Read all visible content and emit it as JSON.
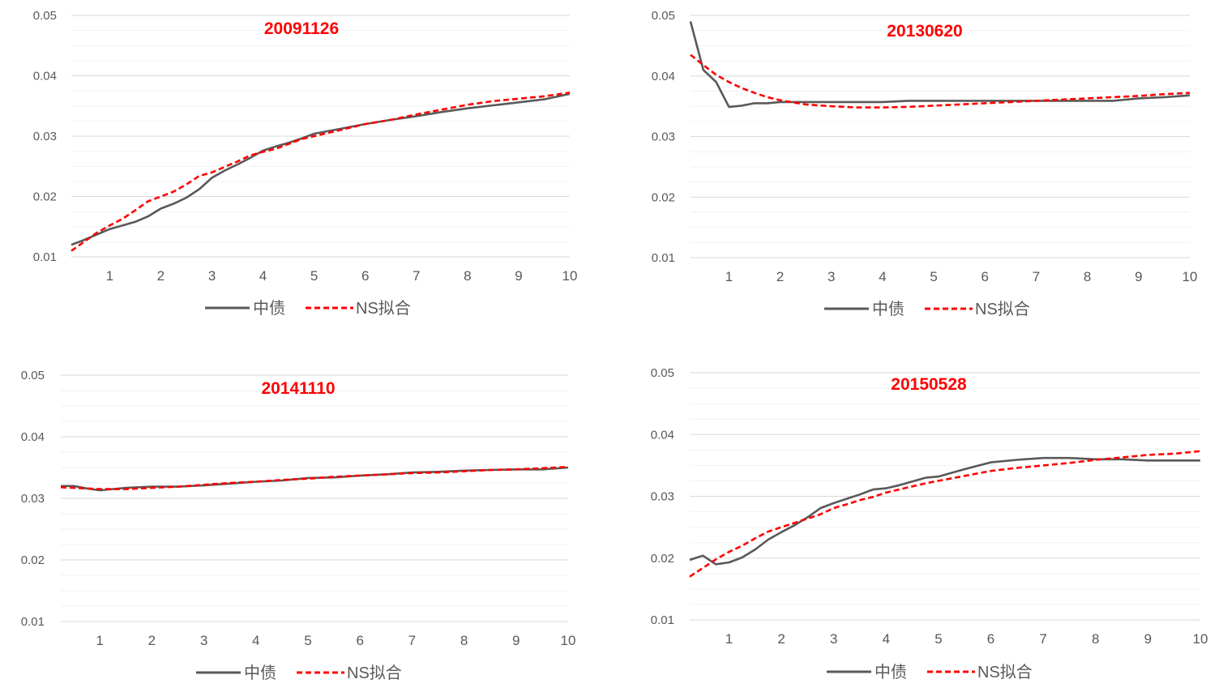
{
  "legend": {
    "series_names": [
      "中债",
      "NS拟合"
    ]
  },
  "colors": {
    "actual": "#595959",
    "fit": "#ff0000",
    "gridline": "#d9d9d9",
    "minor_gridline": "#f2f2f2"
  },
  "chart_data": [
    {
      "type": "line",
      "title": "20091126",
      "x_ticks": [
        1,
        2,
        3,
        4,
        5,
        6,
        7,
        8,
        9,
        10
      ],
      "y_ticks": [
        "0.01",
        "0.02",
        "0.03",
        "0.04",
        "0.05"
      ],
      "xlim": [
        0.25,
        10
      ],
      "ylim": [
        0.01,
        0.05
      ],
      "legend_position": "bottom",
      "series": [
        {
          "name": "中债",
          "style": "solid",
          "x": [
            0.25,
            0.5,
            0.75,
            1,
            1.25,
            1.5,
            1.75,
            2,
            2.25,
            2.5,
            2.75,
            3,
            3.25,
            3.5,
            3.75,
            4,
            4.25,
            4.5,
            4.75,
            5,
            5.5,
            6,
            6.5,
            7,
            7.5,
            8,
            8.5,
            9,
            9.5,
            10
          ],
          "y": [
            0.012,
            0.0128,
            0.0137,
            0.0146,
            0.0152,
            0.0158,
            0.0167,
            0.018,
            0.0188,
            0.0198,
            0.0212,
            0.0231,
            0.0243,
            0.0253,
            0.0264,
            0.0276,
            0.0283,
            0.0289,
            0.0296,
            0.0304,
            0.0312,
            0.032,
            0.0327,
            0.0333,
            0.034,
            0.0346,
            0.0351,
            0.0356,
            0.0361,
            0.037
          ]
        },
        {
          "name": "NS拟合",
          "style": "dashed",
          "x": [
            0.25,
            0.5,
            0.75,
            1,
            1.25,
            1.5,
            1.75,
            2,
            2.25,
            2.5,
            2.75,
            3,
            3.25,
            3.5,
            3.75,
            4,
            4.25,
            4.5,
            4.75,
            5,
            5.5,
            6,
            6.5,
            7,
            7.5,
            8,
            8.5,
            9,
            9.5,
            10
          ],
          "y": [
            0.011,
            0.0125,
            0.014,
            0.0152,
            0.0163,
            0.0177,
            0.0192,
            0.02,
            0.0208,
            0.022,
            0.0234,
            0.024,
            0.0249,
            0.0258,
            0.0268,
            0.0274,
            0.0279,
            0.0287,
            0.0295,
            0.03,
            0.031,
            0.032,
            0.0327,
            0.0336,
            0.0344,
            0.0352,
            0.0358,
            0.0362,
            0.0366,
            0.0372
          ]
        }
      ]
    },
    {
      "type": "line",
      "title": "20130620",
      "x_ticks": [
        1,
        2,
        3,
        4,
        5,
        6,
        7,
        8,
        9,
        10
      ],
      "y_ticks": [
        "0.01",
        "0.02",
        "0.03",
        "0.04",
        "0.05"
      ],
      "xlim": [
        0.25,
        10
      ],
      "ylim": [
        0.01,
        0.05
      ],
      "legend_position": "bottom",
      "series": [
        {
          "name": "中债",
          "style": "solid",
          "x": [
            0.25,
            0.5,
            0.75,
            1,
            1.25,
            1.5,
            1.75,
            2,
            2.5,
            3,
            3.5,
            4,
            4.5,
            5,
            5.5,
            6,
            6.5,
            7,
            7.5,
            8,
            8.5,
            9,
            9.5,
            10
          ],
          "y": [
            0.049,
            0.041,
            0.039,
            0.0349,
            0.0351,
            0.0355,
            0.0355,
            0.0357,
            0.0357,
            0.0357,
            0.0357,
            0.0357,
            0.0359,
            0.0359,
            0.0359,
            0.0359,
            0.0359,
            0.0359,
            0.0359,
            0.0359,
            0.0359,
            0.0363,
            0.0365,
            0.0368
          ]
        },
        {
          "name": "NS拟合",
          "style": "dashed",
          "x": [
            0.25,
            0.5,
            0.75,
            1,
            1.25,
            1.5,
            1.75,
            2,
            2.5,
            3,
            3.5,
            4,
            4.5,
            5,
            5.5,
            6,
            6.5,
            7,
            7.5,
            8,
            8.5,
            9,
            9.5,
            10
          ],
          "y": [
            0.0435,
            0.0418,
            0.0402,
            0.039,
            0.038,
            0.0372,
            0.0365,
            0.036,
            0.0353,
            0.035,
            0.0348,
            0.0348,
            0.0349,
            0.0351,
            0.0353,
            0.0355,
            0.0357,
            0.0359,
            0.0361,
            0.0363,
            0.0365,
            0.0367,
            0.037,
            0.0372
          ]
        }
      ]
    },
    {
      "type": "line",
      "title": "20141110",
      "x_ticks": [
        1,
        2,
        3,
        4,
        5,
        6,
        7,
        8,
        9,
        10
      ],
      "y_ticks": [
        "0.01",
        "0.02",
        "0.03",
        "0.04",
        "0.05"
      ],
      "xlim": [
        0.25,
        10
      ],
      "ylim": [
        0.01,
        0.05
      ],
      "legend_position": "bottom",
      "series": [
        {
          "name": "中债",
          "style": "solid",
          "x": [
            0.25,
            0.5,
            0.75,
            1,
            1.5,
            2,
            2.5,
            3,
            3.5,
            4,
            4.5,
            5,
            5.5,
            6,
            6.5,
            7,
            7.5,
            8,
            8.5,
            9,
            9.5,
            10
          ],
          "y": [
            0.032,
            0.032,
            0.0316,
            0.0313,
            0.0317,
            0.0319,
            0.0319,
            0.0321,
            0.0324,
            0.0327,
            0.0329,
            0.0333,
            0.0334,
            0.0337,
            0.0339,
            0.0342,
            0.0343,
            0.0345,
            0.0346,
            0.0347,
            0.0347,
            0.035
          ]
        },
        {
          "name": "NS拟合",
          "style": "dashed",
          "x": [
            0.25,
            0.5,
            0.75,
            1,
            1.5,
            2,
            2.5,
            3,
            3.5,
            4,
            4.5,
            5,
            5.5,
            6,
            6.5,
            7,
            7.5,
            8,
            8.5,
            9,
            9.5,
            10
          ],
          "y": [
            0.0318,
            0.0317,
            0.0316,
            0.0315,
            0.0315,
            0.0317,
            0.0319,
            0.0322,
            0.0325,
            0.0327,
            0.033,
            0.0332,
            0.0335,
            0.0337,
            0.0339,
            0.0341,
            0.0342,
            0.0344,
            0.0346,
            0.0347,
            0.0349,
            0.0351
          ]
        }
      ]
    },
    {
      "type": "line",
      "title": "20150528",
      "x_ticks": [
        1,
        2,
        3,
        4,
        5,
        6,
        7,
        8,
        9,
        10
      ],
      "y_ticks": [
        "0.01",
        "0.02",
        "0.03",
        "0.04",
        "0.05"
      ],
      "xlim": [
        0.25,
        10
      ],
      "ylim": [
        0.01,
        0.05
      ],
      "legend_position": "bottom",
      "series": [
        {
          "name": "中债",
          "style": "solid",
          "x": [
            0.25,
            0.5,
            0.75,
            1,
            1.25,
            1.5,
            1.75,
            2,
            2.25,
            2.5,
            2.75,
            3,
            3.25,
            3.5,
            3.75,
            4,
            4.25,
            4.5,
            4.75,
            5,
            5.5,
            6,
            6.5,
            7,
            7.5,
            8,
            8.5,
            9,
            9.5,
            10
          ],
          "y": [
            0.0197,
            0.0204,
            0.019,
            0.0193,
            0.0201,
            0.0214,
            0.023,
            0.0242,
            0.0253,
            0.0266,
            0.0281,
            0.0289,
            0.0296,
            0.0303,
            0.0311,
            0.0313,
            0.0318,
            0.0324,
            0.033,
            0.0332,
            0.0344,
            0.0355,
            0.0359,
            0.0362,
            0.0362,
            0.036,
            0.036,
            0.0358,
            0.0358,
            0.0358
          ]
        },
        {
          "name": "NS拟合",
          "style": "dashed",
          "x": [
            0.25,
            0.5,
            0.75,
            1,
            1.25,
            1.5,
            1.75,
            2,
            2.25,
            2.5,
            2.75,
            3,
            3.25,
            3.5,
            3.75,
            4,
            4.25,
            4.5,
            4.75,
            5,
            5.5,
            6,
            6.5,
            7,
            7.5,
            8,
            8.5,
            9,
            9.5,
            10
          ],
          "y": [
            0.017,
            0.0184,
            0.0198,
            0.021,
            0.022,
            0.0232,
            0.0243,
            0.025,
            0.0257,
            0.0264,
            0.0271,
            0.0281,
            0.0287,
            0.0294,
            0.0299,
            0.0306,
            0.0311,
            0.0316,
            0.0321,
            0.0325,
            0.0333,
            0.0341,
            0.0346,
            0.035,
            0.0354,
            0.0359,
            0.0363,
            0.0367,
            0.0369,
            0.0373
          ]
        }
      ]
    }
  ]
}
